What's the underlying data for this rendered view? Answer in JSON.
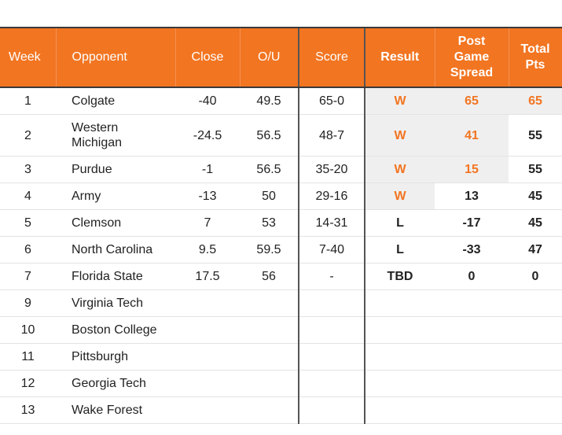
{
  "table": {
    "headers": {
      "week": "Week",
      "opponent": "Opponent",
      "close": "Close",
      "ou": "O/U",
      "score": "Score",
      "result": "Result",
      "spread_line1": "Post",
      "spread_line2": "Game",
      "spread_line3": "Spread",
      "total_line1": "Total",
      "total_line2": "Pts"
    },
    "rows": [
      {
        "week": "1",
        "opponent_line1": "Colgate",
        "opponent_line2": "",
        "close": "-40",
        "ou": "49.5",
        "score": "65-0",
        "result": "W",
        "spread": "65",
        "total": "65"
      },
      {
        "week": "2",
        "opponent_line1": "Western",
        "opponent_line2": "Michigan",
        "close": "-24.5",
        "ou": "56.5",
        "score": "48-7",
        "result": "W",
        "spread": "41",
        "total": "55"
      },
      {
        "week": "3",
        "opponent_line1": "Purdue",
        "opponent_line2": "",
        "close": "-1",
        "ou": "56.5",
        "score": "35-20",
        "result": "W",
        "spread": "15",
        "total": "55"
      },
      {
        "week": "4",
        "opponent_line1": "Army",
        "opponent_line2": "",
        "close": "-13",
        "ou": "50",
        "score": "29-16",
        "result": "W",
        "spread": "13",
        "total": "45"
      },
      {
        "week": "5",
        "opponent_line1": "Clemson",
        "opponent_line2": "",
        "close": "7",
        "ou": "53",
        "score": "14-31",
        "result": "L",
        "spread": "-17",
        "total": "45"
      },
      {
        "week": "6",
        "opponent_line1": "North Carolina",
        "opponent_line2": "",
        "close": "9.5",
        "ou": "59.5",
        "score": "7-40",
        "result": "L",
        "spread": "-33",
        "total": "47"
      },
      {
        "week": "7",
        "opponent_line1": "Florida State",
        "opponent_line2": "",
        "close": "17.5",
        "ou": "56",
        "score": "-",
        "result": "TBD",
        "spread": "0",
        "total": "0"
      },
      {
        "week": "9",
        "opponent_line1": "Virginia Tech",
        "opponent_line2": "",
        "close": "",
        "ou": "",
        "score": "",
        "result": "",
        "spread": "",
        "total": ""
      },
      {
        "week": "10",
        "opponent_line1": "Boston College",
        "opponent_line2": "",
        "close": "",
        "ou": "",
        "score": "",
        "result": "",
        "spread": "",
        "total": ""
      },
      {
        "week": "11",
        "opponent_line1": "Pittsburgh",
        "opponent_line2": "",
        "close": "",
        "ou": "",
        "score": "",
        "result": "",
        "spread": "",
        "total": ""
      },
      {
        "week": "12",
        "opponent_line1": "Georgia Tech",
        "opponent_line2": "",
        "close": "",
        "ou": "",
        "score": "",
        "result": "",
        "spread": "",
        "total": ""
      },
      {
        "week": "13",
        "opponent_line1": "Wake Forest",
        "opponent_line2": "",
        "close": "",
        "ou": "",
        "score": "",
        "result": "",
        "spread": "",
        "total": ""
      }
    ]
  },
  "colors": {
    "header_bg": "#F27521",
    "highlight_text": "#F27521",
    "highlight_bg": "#efefef"
  }
}
